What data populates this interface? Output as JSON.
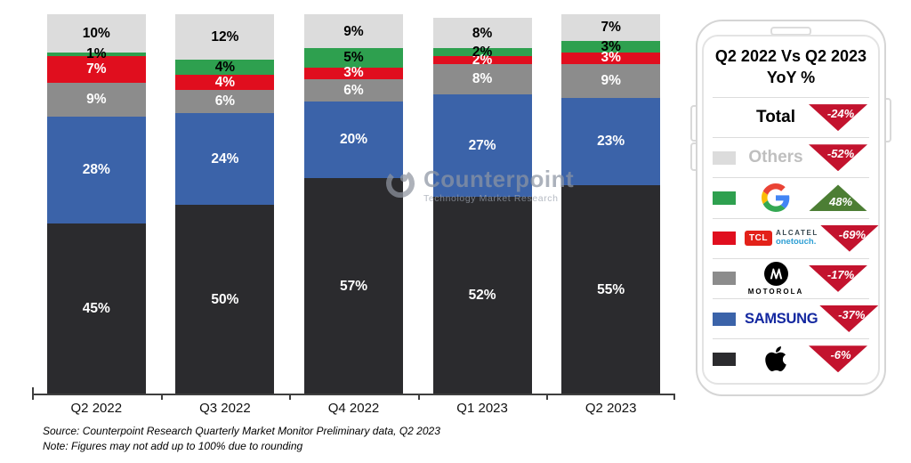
{
  "chart_data": {
    "type": "bar",
    "variant": "stacked-100",
    "title": "",
    "categories": [
      "Q2 2022",
      "Q3 2022",
      "Q4 2022",
      "Q1 2023",
      "Q2 2023"
    ],
    "unit": "%",
    "ylim": [
      0,
      100
    ],
    "grid": false,
    "legend_position": "right-panel",
    "series": [
      {
        "name": "Apple",
        "color": "#2B2B2E",
        "label_color": "#FFFFFF",
        "values": [
          45,
          50,
          57,
          52,
          55
        ]
      },
      {
        "name": "Samsung",
        "color": "#3B63A9",
        "label_color": "#FFFFFF",
        "values": [
          28,
          24,
          20,
          27,
          23
        ]
      },
      {
        "name": "Motorola",
        "color": "#8C8C8C",
        "label_color": "#FFFFFF",
        "values": [
          9,
          6,
          6,
          8,
          9
        ]
      },
      {
        "name": "TCL-Alcatel",
        "color": "#E00E1E",
        "label_color": "#FFFFFF",
        "values": [
          7,
          4,
          3,
          2,
          3
        ]
      },
      {
        "name": "Google",
        "color": "#2EA04F",
        "label_color": "#000000",
        "values": [
          1,
          4,
          5,
          2,
          3
        ]
      },
      {
        "name": "Others",
        "color": "#DCDCDC",
        "label_color": "#000000",
        "values": [
          10,
          12,
          9,
          8,
          7
        ]
      }
    ]
  },
  "watermark": {
    "name": "Counterpoint",
    "tagline": "Technology Market Research"
  },
  "panel": {
    "title_line1": "Q2 2022 Vs Q2 2023",
    "title_line2": "YoY %",
    "colors": {
      "down": "#C3132E",
      "up": "#4C7E34"
    },
    "rows": [
      {
        "label": "Total",
        "change": "-24%",
        "direction": "down"
      },
      {
        "label": "Others",
        "change": "-52%",
        "direction": "down"
      },
      {
        "label": "Google",
        "change": "48%",
        "direction": "up"
      },
      {
        "label": "TCL Alcatel onetouch",
        "change": "-69%",
        "direction": "down",
        "tcl": "TCL",
        "alcatel": "ALCATEL",
        "onetouch": "onetouch."
      },
      {
        "label": "MOTOROLA",
        "change": "-17%",
        "direction": "down"
      },
      {
        "label": "SAMSUNG",
        "change": "-37%",
        "direction": "down"
      },
      {
        "label": "Apple",
        "change": "-6%",
        "direction": "down"
      }
    ]
  },
  "footnotes": {
    "source": "Source: Counterpoint Research Quarterly Market Monitor Preliminary data, Q2 2023",
    "note": "Note: Figures may not add up to 100% due to rounding"
  }
}
